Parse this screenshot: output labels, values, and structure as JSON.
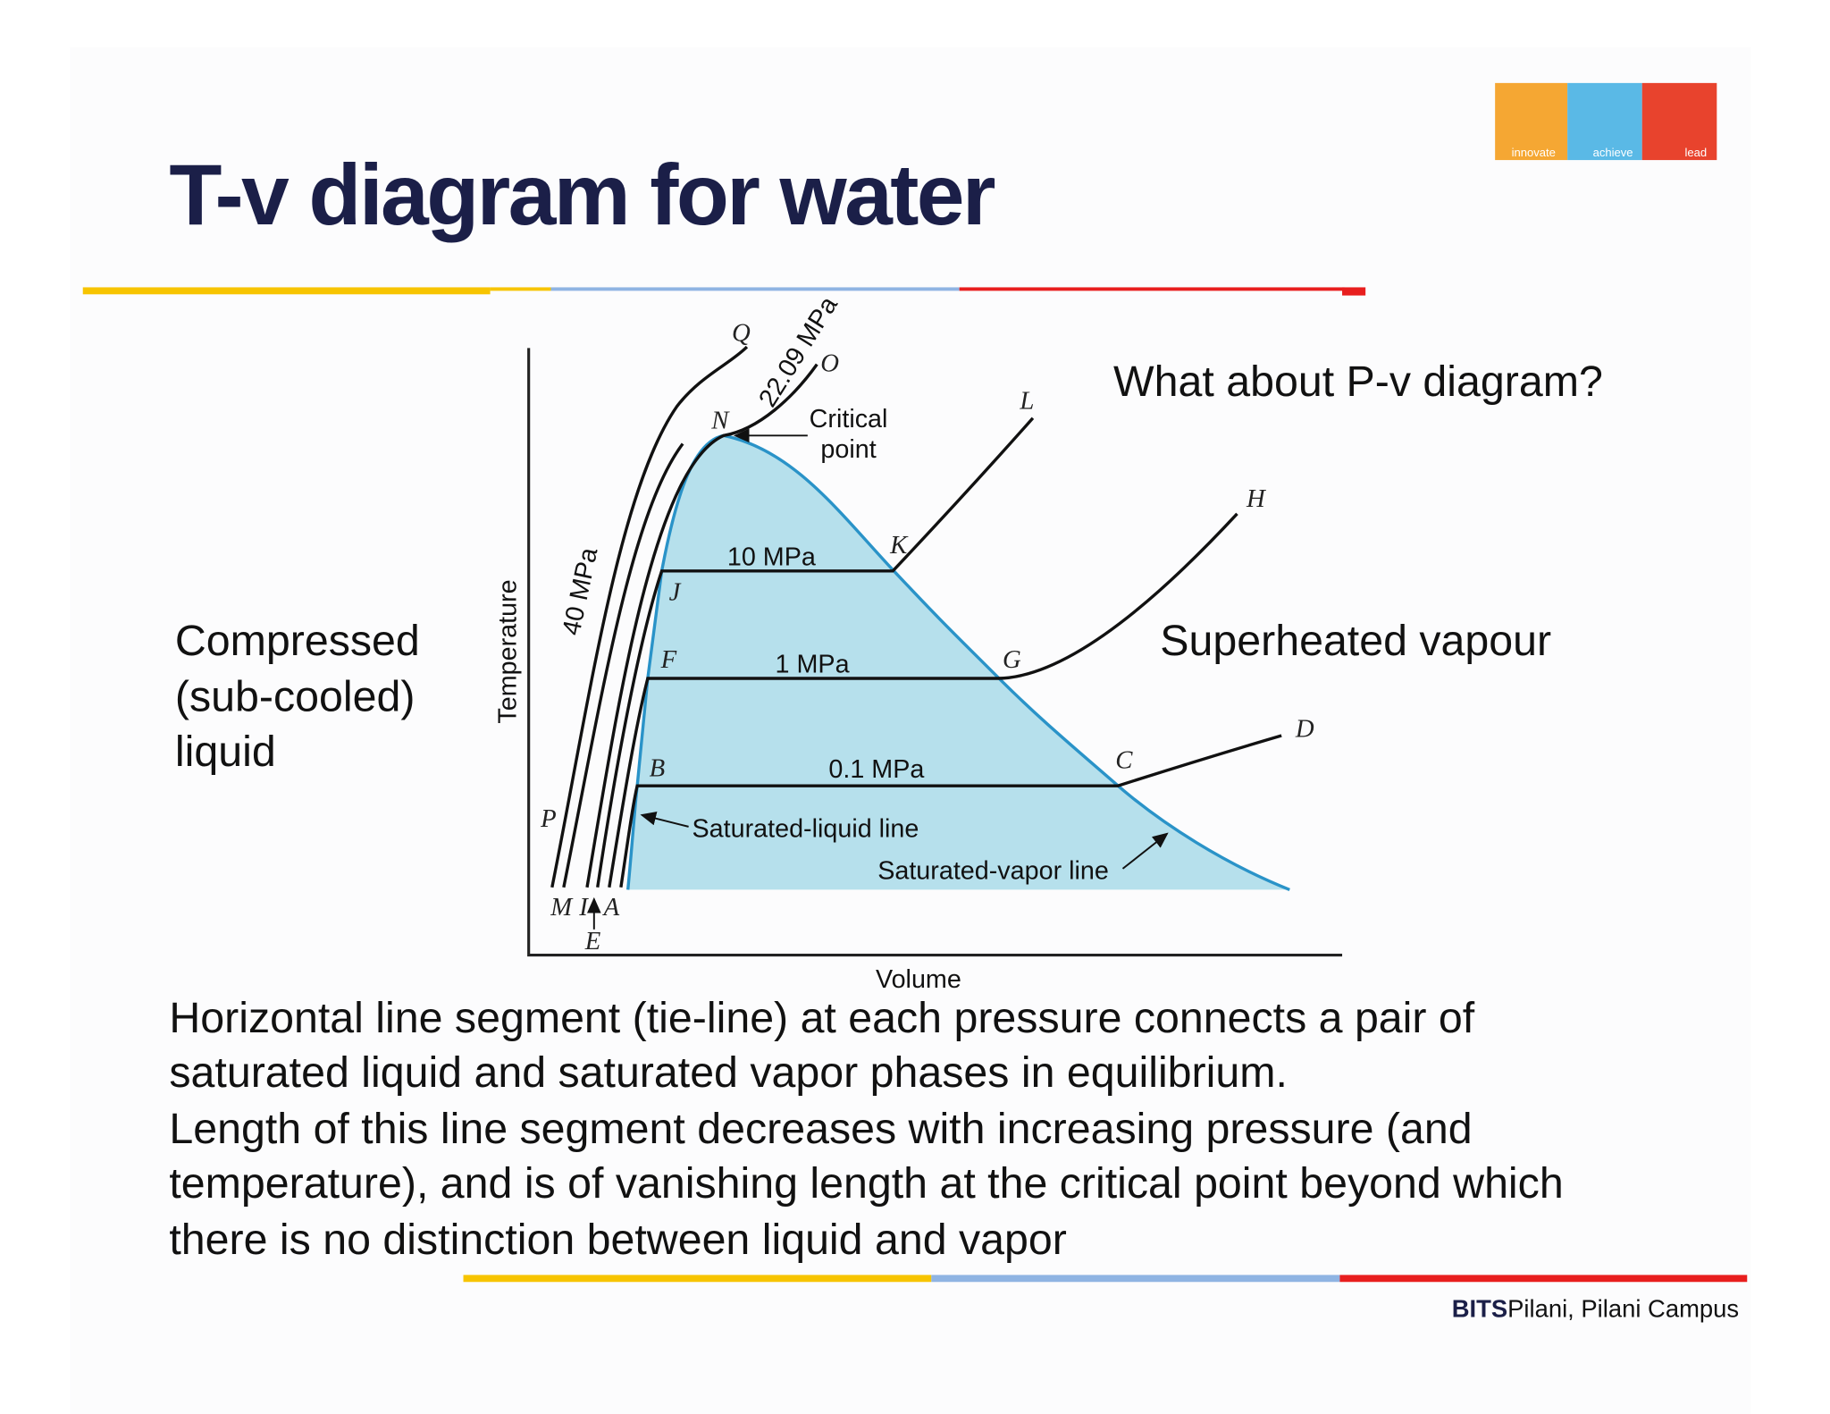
{
  "title": "T-v diagram for water",
  "logo": [
    "innovate",
    "achieve",
    "lead"
  ],
  "diagram": {
    "axis_labels": {
      "x": "Volume",
      "y": "Temperature"
    },
    "isobars": {
      "critical": "22.09 MPa",
      "high": "40 MPa",
      "p10": "10 MPa",
      "p1": "1 MPa",
      "p01": "0.1 MPa"
    },
    "points": {
      "Q": "Q",
      "O": "O",
      "N": "N",
      "L": "L",
      "K": "K",
      "H": "H",
      "J": "J",
      "F": "F",
      "G": "G",
      "D": "D",
      "C": "C",
      "B": "B",
      "P": "P",
      "M": "M",
      "I": "I",
      "A": "A",
      "E": "E"
    },
    "critical_point": [
      "Critical",
      "point"
    ],
    "saturated_liquid": "Saturated-liquid line",
    "saturated_vapor": "Saturated-vapor line"
  },
  "compressed_label": [
    "Compressed",
    "(sub-cooled)",
    "liquid"
  ],
  "superheated_label": "Superheated vapour",
  "question": "What about P-v diagram?",
  "body": [
    "Horizontal line segment (tie-line) at each pressure connects a pair of",
    "saturated liquid and saturated vapor phases in equilibrium.",
    "Length of this line segment decreases with increasing pressure (and",
    "temperature), and is of vanishing length at the critical point beyond which",
    "there is no distinction between liquid and vapor"
  ],
  "footer": {
    "brand": "BITS",
    "campus": "Pilani, Pilani Campus"
  }
}
